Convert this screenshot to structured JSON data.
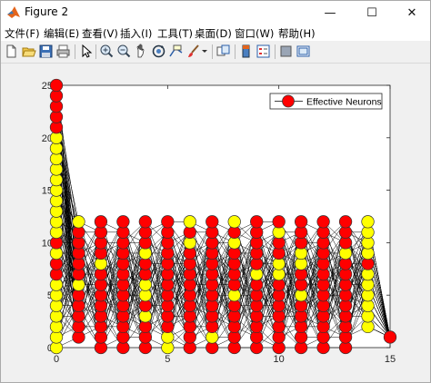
{
  "window": {
    "title": "Figure 2",
    "minimize_glyph": "—",
    "maximize_glyph": "☐",
    "close_glyph": "✕"
  },
  "menu": {
    "items": [
      {
        "label": "文件(F)"
      },
      {
        "label": "编辑(E)"
      },
      {
        "label": "查看(V)"
      },
      {
        "label": "插入(I)"
      },
      {
        "label": "工具(T)"
      },
      {
        "label": "桌面(D)"
      },
      {
        "label": "窗口(W)"
      },
      {
        "label": "帮助(H)"
      }
    ]
  },
  "toolbar": {
    "icons": [
      "new-figure-icon",
      "open-file-icon",
      "save-icon",
      "print-icon",
      "edit-plot-arrow-icon",
      "zoom-in-icon",
      "zoom-out-icon",
      "pan-hand-icon",
      "rotate-3d-icon",
      "data-cursor-icon",
      "brush-icon",
      "brush-dropdown-icon",
      "link-plot-icon",
      "insert-colorbar-icon",
      "insert-legend-icon",
      "hide-plot-tools-icon",
      "show-plot-tools-icon"
    ]
  },
  "chart_data": {
    "type": "scatter",
    "title": "",
    "xlabel": "",
    "ylabel": "",
    "xlim": [
      0,
      15
    ],
    "ylim": [
      0,
      25
    ],
    "xticks": [
      "0",
      "5",
      "10",
      "15"
    ],
    "yticks": [
      "0",
      "5",
      "10",
      "15",
      "20",
      "25"
    ],
    "legend": {
      "label": "Effective Neurons",
      "position": "top-right"
    },
    "colors": {
      "red": "#ff0000",
      "yellow": "#ffff00",
      "edge": "#333333",
      "line": "#000000"
    },
    "layers": [
      {
        "x": 0,
        "neurons": [
          {
            "y": 0,
            "c": "yellow"
          },
          {
            "y": 1,
            "c": "yellow"
          },
          {
            "y": 2,
            "c": "yellow"
          },
          {
            "y": 3,
            "c": "yellow"
          },
          {
            "y": 4,
            "c": "yellow"
          },
          {
            "y": 5,
            "c": "yellow"
          },
          {
            "y": 6,
            "c": "yellow"
          },
          {
            "y": 7,
            "c": "red"
          },
          {
            "y": 8,
            "c": "red"
          },
          {
            "y": 9,
            "c": "yellow"
          },
          {
            "y": 10,
            "c": "red"
          },
          {
            "y": 11,
            "c": "yellow"
          },
          {
            "y": 12,
            "c": "yellow"
          },
          {
            "y": 13,
            "c": "yellow"
          },
          {
            "y": 14,
            "c": "yellow"
          },
          {
            "y": 15,
            "c": "yellow"
          },
          {
            "y": 16,
            "c": "yellow"
          },
          {
            "y": 17,
            "c": "yellow"
          },
          {
            "y": 18,
            "c": "yellow"
          },
          {
            "y": 19,
            "c": "yellow"
          },
          {
            "y": 20,
            "c": "yellow"
          },
          {
            "y": 21,
            "c": "red"
          },
          {
            "y": 22,
            "c": "red"
          },
          {
            "y": 23,
            "c": "red"
          },
          {
            "y": 24,
            "c": "red"
          },
          {
            "y": 25,
            "c": "red"
          }
        ]
      },
      {
        "x": 1,
        "neurons": [
          {
            "y": 1,
            "c": "red"
          },
          {
            "y": 2,
            "c": "red"
          },
          {
            "y": 3,
            "c": "red"
          },
          {
            "y": 4,
            "c": "red"
          },
          {
            "y": 5,
            "c": "red"
          },
          {
            "y": 6,
            "c": "yellow"
          },
          {
            "y": 7,
            "c": "red"
          },
          {
            "y": 8,
            "c": "red"
          },
          {
            "y": 9,
            "c": "red"
          },
          {
            "y": 10,
            "c": "red"
          },
          {
            "y": 11,
            "c": "red"
          },
          {
            "y": 12,
            "c": "yellow"
          }
        ]
      },
      {
        "x": 2,
        "neurons": [
          {
            "y": 0,
            "c": "red"
          },
          {
            "y": 1,
            "c": "red"
          },
          {
            "y": 2,
            "c": "red"
          },
          {
            "y": 3,
            "c": "red"
          },
          {
            "y": 4,
            "c": "red"
          },
          {
            "y": 5,
            "c": "red"
          },
          {
            "y": 6,
            "c": "red"
          },
          {
            "y": 7,
            "c": "red"
          },
          {
            "y": 8,
            "c": "yellow"
          },
          {
            "y": 9,
            "c": "red"
          },
          {
            "y": 10,
            "c": "red"
          },
          {
            "y": 11,
            "c": "red"
          },
          {
            "y": 12,
            "c": "red"
          }
        ]
      },
      {
        "x": 3,
        "neurons": [
          {
            "y": 0,
            "c": "red"
          },
          {
            "y": 1,
            "c": "red"
          },
          {
            "y": 2,
            "c": "red"
          },
          {
            "y": 3,
            "c": "red"
          },
          {
            "y": 4,
            "c": "red"
          },
          {
            "y": 5,
            "c": "red"
          },
          {
            "y": 6,
            "c": "red"
          },
          {
            "y": 7,
            "c": "red"
          },
          {
            "y": 8,
            "c": "red"
          },
          {
            "y": 9,
            "c": "red"
          },
          {
            "y": 10,
            "c": "red"
          },
          {
            "y": 11,
            "c": "red"
          },
          {
            "y": 12,
            "c": "red"
          }
        ]
      },
      {
        "x": 4,
        "neurons": [
          {
            "y": 0,
            "c": "red"
          },
          {
            "y": 1,
            "c": "red"
          },
          {
            "y": 2,
            "c": "red"
          },
          {
            "y": 3,
            "c": "yellow"
          },
          {
            "y": 4,
            "c": "red"
          },
          {
            "y": 5,
            "c": "yellow"
          },
          {
            "y": 6,
            "c": "yellow"
          },
          {
            "y": 7,
            "c": "red"
          },
          {
            "y": 8,
            "c": "red"
          },
          {
            "y": 9,
            "c": "yellow"
          },
          {
            "y": 10,
            "c": "red"
          },
          {
            "y": 11,
            "c": "red"
          },
          {
            "y": 12,
            "c": "red"
          }
        ]
      },
      {
        "x": 5,
        "neurons": [
          {
            "y": 0,
            "c": "yellow"
          },
          {
            "y": 1,
            "c": "yellow"
          },
          {
            "y": 2,
            "c": "red"
          },
          {
            "y": 3,
            "c": "red"
          },
          {
            "y": 4,
            "c": "red"
          },
          {
            "y": 5,
            "c": "red"
          },
          {
            "y": 6,
            "c": "red"
          },
          {
            "y": 7,
            "c": "red"
          },
          {
            "y": 8,
            "c": "red"
          },
          {
            "y": 9,
            "c": "red"
          },
          {
            "y": 10,
            "c": "red"
          },
          {
            "y": 11,
            "c": "red"
          },
          {
            "y": 12,
            "c": "red"
          }
        ]
      },
      {
        "x": 6,
        "neurons": [
          {
            "y": 0,
            "c": "red"
          },
          {
            "y": 1,
            "c": "red"
          },
          {
            "y": 2,
            "c": "red"
          },
          {
            "y": 3,
            "c": "red"
          },
          {
            "y": 4,
            "c": "red"
          },
          {
            "y": 5,
            "c": "red"
          },
          {
            "y": 6,
            "c": "red"
          },
          {
            "y": 7,
            "c": "red"
          },
          {
            "y": 8,
            "c": "red"
          },
          {
            "y": 9,
            "c": "red"
          },
          {
            "y": 10,
            "c": "yellow"
          },
          {
            "y": 11,
            "c": "red"
          },
          {
            "y": 12,
            "c": "yellow"
          }
        ]
      },
      {
        "x": 7,
        "neurons": [
          {
            "y": 0,
            "c": "red"
          },
          {
            "y": 1,
            "c": "yellow"
          },
          {
            "y": 2,
            "c": "red"
          },
          {
            "y": 3,
            "c": "red"
          },
          {
            "y": 4,
            "c": "red"
          },
          {
            "y": 5,
            "c": "red"
          },
          {
            "y": 6,
            "c": "red"
          },
          {
            "y": 7,
            "c": "red"
          },
          {
            "y": 8,
            "c": "red"
          },
          {
            "y": 9,
            "c": "red"
          },
          {
            "y": 10,
            "c": "red"
          },
          {
            "y": 11,
            "c": "red"
          },
          {
            "y": 12,
            "c": "red"
          }
        ]
      },
      {
        "x": 8,
        "neurons": [
          {
            "y": 0,
            "c": "red"
          },
          {
            "y": 1,
            "c": "red"
          },
          {
            "y": 2,
            "c": "red"
          },
          {
            "y": 3,
            "c": "red"
          },
          {
            "y": 4,
            "c": "red"
          },
          {
            "y": 5,
            "c": "yellow"
          },
          {
            "y": 6,
            "c": "red"
          },
          {
            "y": 7,
            "c": "red"
          },
          {
            "y": 8,
            "c": "red"
          },
          {
            "y": 9,
            "c": "red"
          },
          {
            "y": 10,
            "c": "yellow"
          },
          {
            "y": 11,
            "c": "red"
          },
          {
            "y": 12,
            "c": "yellow"
          }
        ]
      },
      {
        "x": 9,
        "neurons": [
          {
            "y": 0,
            "c": "red"
          },
          {
            "y": 1,
            "c": "red"
          },
          {
            "y": 2,
            "c": "red"
          },
          {
            "y": 3,
            "c": "red"
          },
          {
            "y": 4,
            "c": "red"
          },
          {
            "y": 5,
            "c": "red"
          },
          {
            "y": 6,
            "c": "red"
          },
          {
            "y": 7,
            "c": "yellow"
          },
          {
            "y": 8,
            "c": "red"
          },
          {
            "y": 9,
            "c": "red"
          },
          {
            "y": 10,
            "c": "red"
          },
          {
            "y": 11,
            "c": "red"
          },
          {
            "y": 12,
            "c": "red"
          }
        ]
      },
      {
        "x": 10,
        "neurons": [
          {
            "y": 0,
            "c": "red"
          },
          {
            "y": 1,
            "c": "red"
          },
          {
            "y": 2,
            "c": "red"
          },
          {
            "y": 3,
            "c": "red"
          },
          {
            "y": 4,
            "c": "red"
          },
          {
            "y": 5,
            "c": "red"
          },
          {
            "y": 6,
            "c": "red"
          },
          {
            "y": 7,
            "c": "yellow"
          },
          {
            "y": 8,
            "c": "yellow"
          },
          {
            "y": 9,
            "c": "red"
          },
          {
            "y": 10,
            "c": "red"
          },
          {
            "y": 11,
            "c": "yellow"
          },
          {
            "y": 12,
            "c": "red"
          }
        ]
      },
      {
        "x": 11,
        "neurons": [
          {
            "y": 0,
            "c": "red"
          },
          {
            "y": 1,
            "c": "red"
          },
          {
            "y": 2,
            "c": "red"
          },
          {
            "y": 3,
            "c": "red"
          },
          {
            "y": 4,
            "c": "red"
          },
          {
            "y": 5,
            "c": "yellow"
          },
          {
            "y": 6,
            "c": "red"
          },
          {
            "y": 7,
            "c": "red"
          },
          {
            "y": 8,
            "c": "yellow"
          },
          {
            "y": 9,
            "c": "yellow"
          },
          {
            "y": 10,
            "c": "red"
          },
          {
            "y": 11,
            "c": "red"
          },
          {
            "y": 12,
            "c": "red"
          }
        ]
      },
      {
        "x": 12,
        "neurons": [
          {
            "y": 0,
            "c": "red"
          },
          {
            "y": 1,
            "c": "red"
          },
          {
            "y": 2,
            "c": "red"
          },
          {
            "y": 3,
            "c": "red"
          },
          {
            "y": 4,
            "c": "red"
          },
          {
            "y": 5,
            "c": "red"
          },
          {
            "y": 6,
            "c": "red"
          },
          {
            "y": 7,
            "c": "red"
          },
          {
            "y": 8,
            "c": "red"
          },
          {
            "y": 9,
            "c": "red"
          },
          {
            "y": 10,
            "c": "red"
          },
          {
            "y": 11,
            "c": "red"
          },
          {
            "y": 12,
            "c": "red"
          }
        ]
      },
      {
        "x": 13,
        "neurons": [
          {
            "y": 0,
            "c": "red"
          },
          {
            "y": 1,
            "c": "red"
          },
          {
            "y": 2,
            "c": "red"
          },
          {
            "y": 3,
            "c": "red"
          },
          {
            "y": 4,
            "c": "red"
          },
          {
            "y": 5,
            "c": "red"
          },
          {
            "y": 6,
            "c": "red"
          },
          {
            "y": 7,
            "c": "red"
          },
          {
            "y": 8,
            "c": "red"
          },
          {
            "y": 9,
            "c": "yellow"
          },
          {
            "y": 10,
            "c": "red"
          },
          {
            "y": 11,
            "c": "red"
          },
          {
            "y": 12,
            "c": "red"
          }
        ]
      },
      {
        "x": 14,
        "neurons": [
          {
            "y": 2,
            "c": "yellow"
          },
          {
            "y": 3,
            "c": "yellow"
          },
          {
            "y": 4,
            "c": "yellow"
          },
          {
            "y": 5,
            "c": "yellow"
          },
          {
            "y": 6,
            "c": "yellow"
          },
          {
            "y": 7,
            "c": "yellow"
          },
          {
            "y": 8,
            "c": "red"
          },
          {
            "y": 9,
            "c": "yellow"
          },
          {
            "y": 10,
            "c": "yellow"
          },
          {
            "y": 11,
            "c": "yellow"
          },
          {
            "y": 12,
            "c": "yellow"
          }
        ]
      },
      {
        "x": 15,
        "neurons": [
          {
            "y": 1,
            "c": "red"
          }
        ]
      }
    ]
  }
}
